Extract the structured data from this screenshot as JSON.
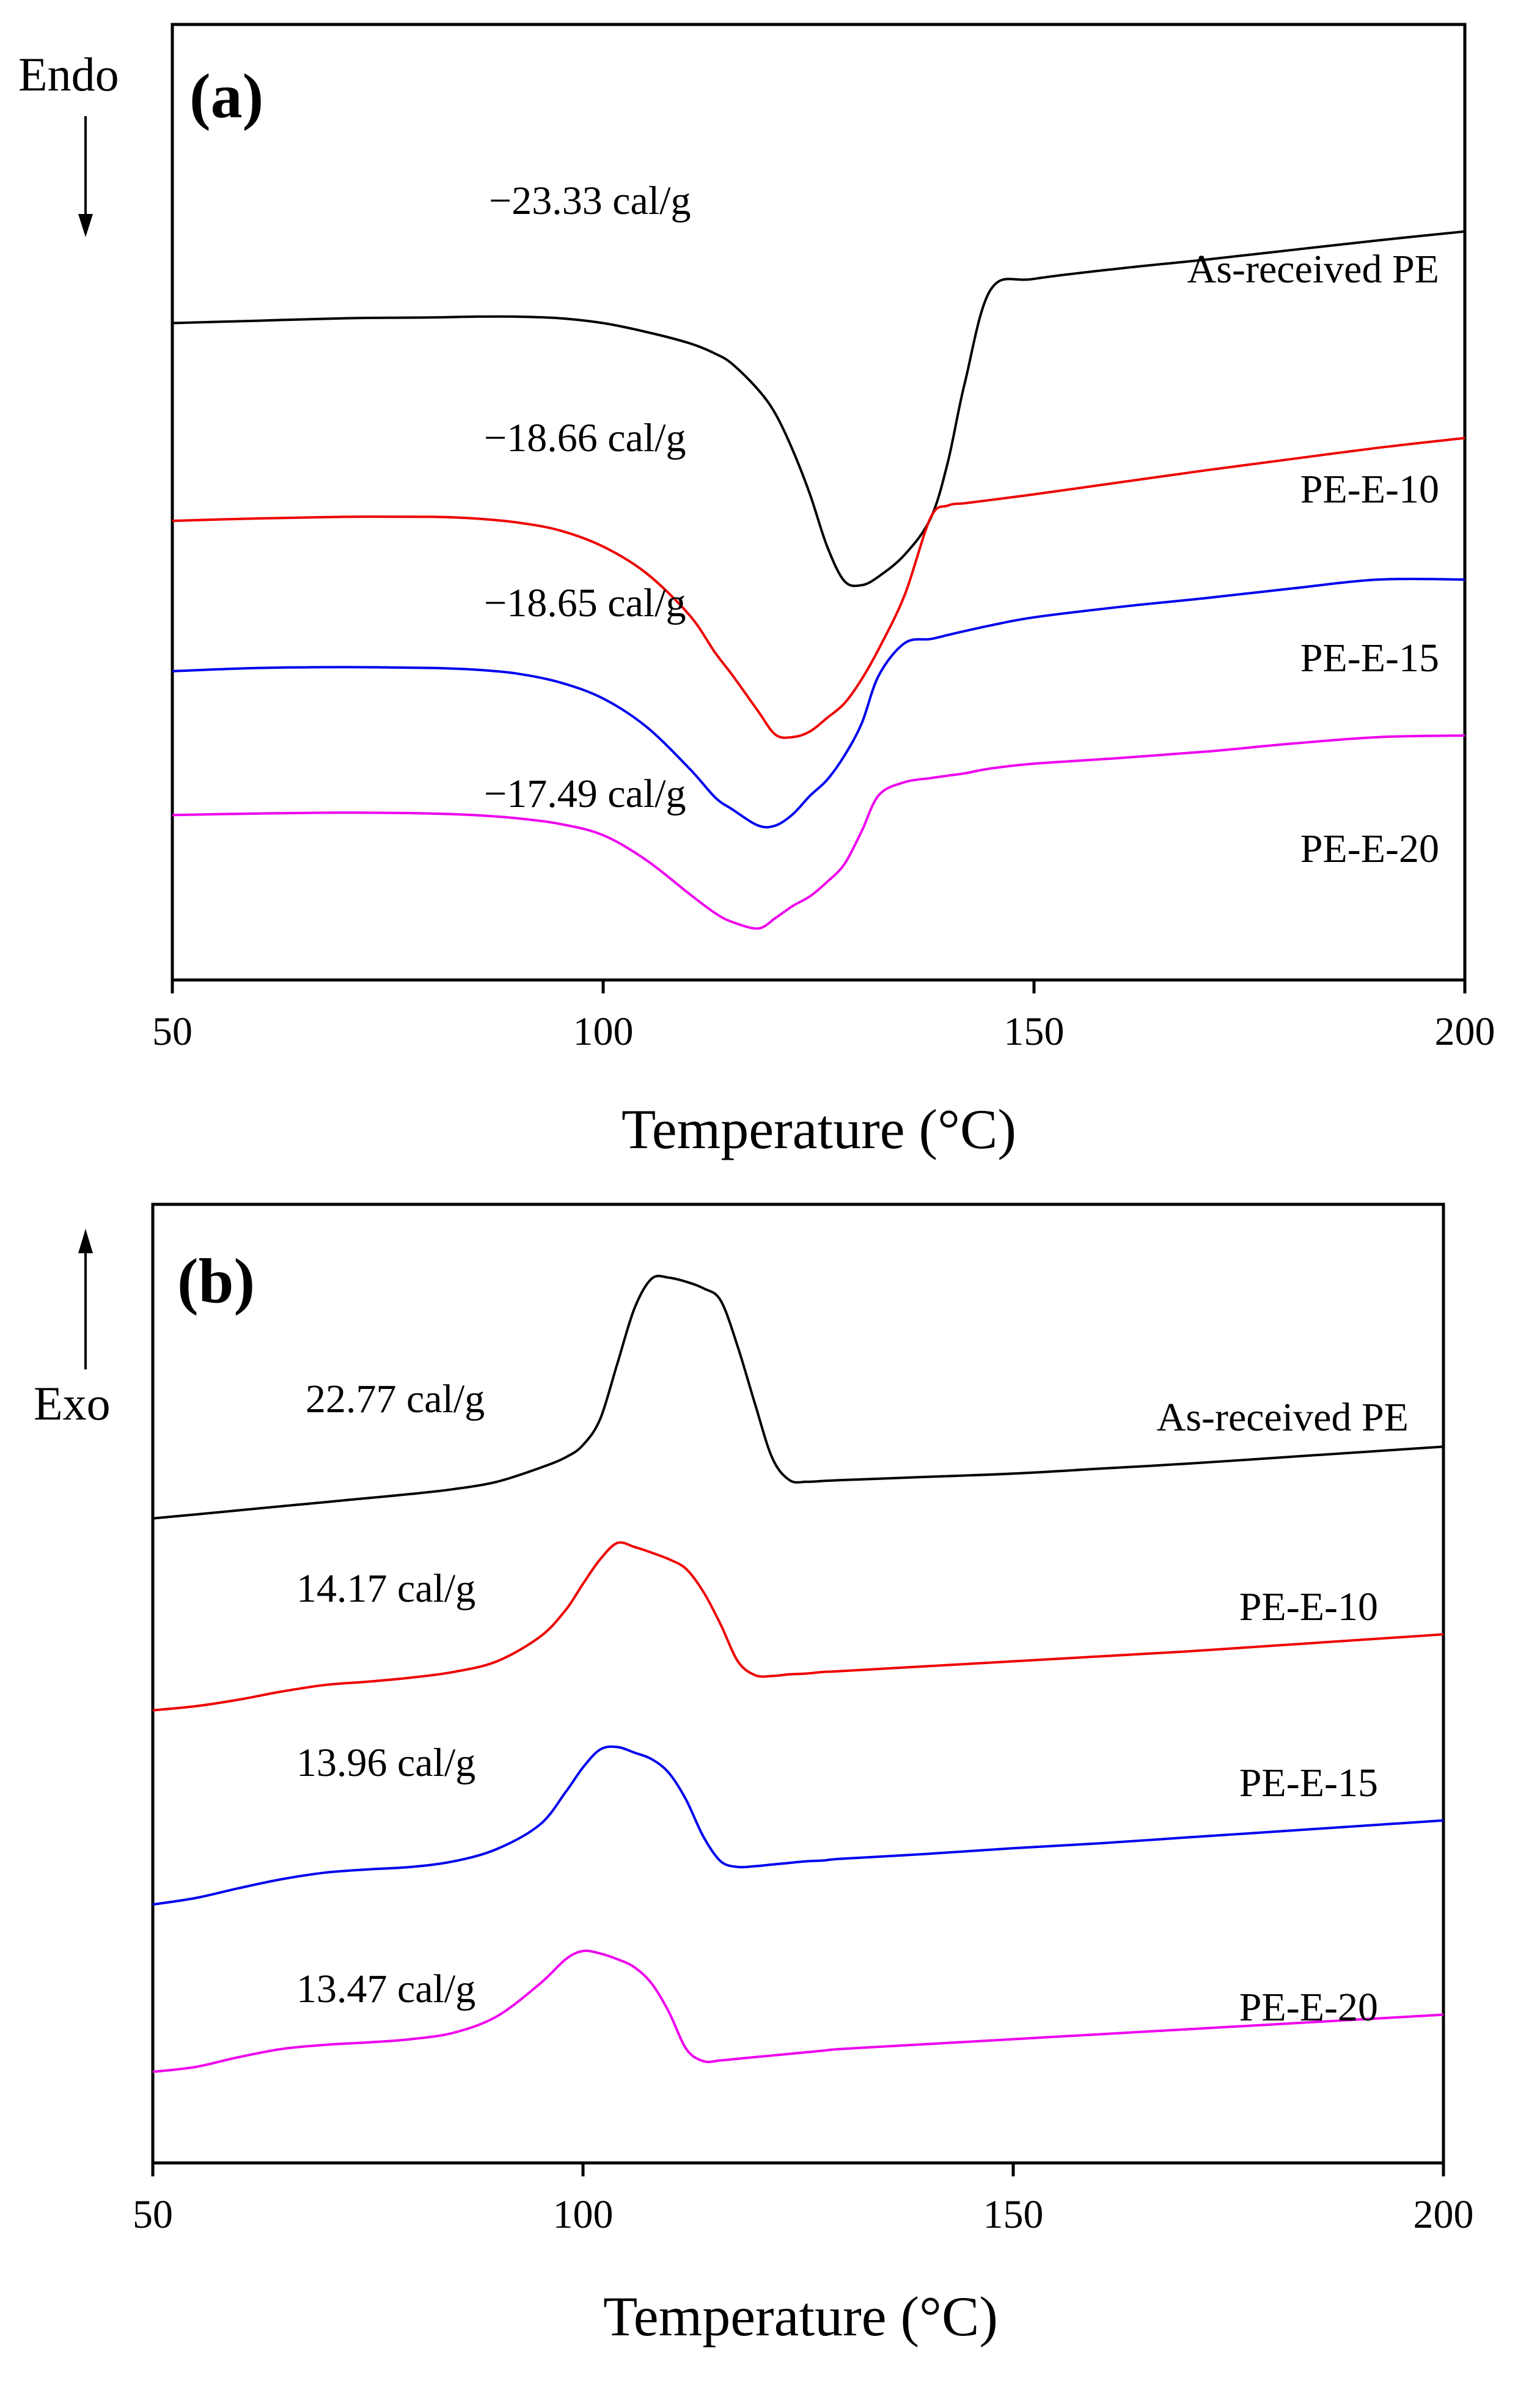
{
  "chart_data": [
    {
      "type": "line",
      "panel_label": "(a)",
      "direction_label": "Endo",
      "direction_arrow": "down",
      "xlabel": "Temperature (°C)",
      "ylabel": "",
      "xlim": [
        50,
        200
      ],
      "ylim": [
        0,
        1
      ],
      "xticks": [
        50,
        100,
        150,
        200
      ],
      "x": [
        50,
        60,
        70,
        80,
        85,
        90,
        95,
        100,
        105,
        110,
        113,
        115,
        118,
        120,
        122,
        124,
        126,
        128,
        130,
        132,
        135,
        138,
        140,
        142,
        145,
        150,
        160,
        170,
        180,
        190,
        200
      ],
      "series": [
        {
          "name": "As-received PE",
          "color": "#000000",
          "enthalpy": "−23.33 cal/g",
          "values": [
            0.773,
            0.776,
            0.779,
            0.78,
            0.781,
            0.781,
            0.779,
            0.773,
            0.762,
            0.748,
            0.735,
            0.722,
            0.69,
            0.66,
            0.615,
            0.56,
            0.495,
            0.452,
            0.447,
            0.458,
            0.485,
            0.53,
            0.6,
            0.7,
            0.815,
            0.828,
            0.841,
            0.852,
            0.864,
            0.876,
            0.887
          ]
        },
        {
          "name": "PE-E-10",
          "color": "#ee0000",
          "enthalpy": "−18.66 cal/g",
          "values": [
            0.527,
            0.53,
            0.532,
            0.532,
            0.53,
            0.525,
            0.515,
            0.495,
            0.462,
            0.41,
            0.363,
            0.335,
            0.29,
            0.261,
            0.258,
            0.265,
            0.282,
            0.3,
            0.33,
            0.368,
            0.435,
            0.531,
            0.546,
            0.549,
            0.553,
            0.56,
            0.575,
            0.59,
            0.604,
            0.618,
            0.63
          ]
        },
        {
          "name": "PE-E-15",
          "color": "#0000ee",
          "enthalpy": "−18.65 cal/g",
          "values": [
            0.34,
            0.344,
            0.345,
            0.344,
            0.342,
            0.337,
            0.326,
            0.306,
            0.271,
            0.219,
            0.183,
            0.168,
            0.148,
            0.148,
            0.162,
            0.185,
            0.205,
            0.235,
            0.275,
            0.335,
            0.375,
            0.38,
            0.385,
            0.39,
            0.397,
            0.407,
            0.42,
            0.431,
            0.443,
            0.454,
            0.454
          ]
        },
        {
          "name": "PE-E-20",
          "color": "#ee00ee",
          "enthalpy": "−17.49 cal/g",
          "values": [
            0.161,
            0.163,
            0.164,
            0.163,
            0.161,
            0.157,
            0.15,
            0.136,
            0.105,
            0.063,
            0.039,
            0.028,
            0.02,
            0.033,
            0.048,
            0.06,
            0.078,
            0.1,
            0.141,
            0.186,
            0.202,
            0.207,
            0.21,
            0.213,
            0.219,
            0.225,
            0.232,
            0.24,
            0.25,
            0.258,
            0.26
          ]
        }
      ]
    },
    {
      "type": "line",
      "panel_label": "(b)",
      "direction_label": "Exo",
      "direction_arrow": "up",
      "xlabel": "Temperature (°C)",
      "ylabel": "",
      "xlim": [
        50,
        200
      ],
      "ylim": [
        0,
        1
      ],
      "xticks": [
        50,
        100,
        150,
        200
      ],
      "x": [
        50,
        55,
        60,
        65,
        70,
        75,
        80,
        85,
        90,
        95,
        98,
        100,
        102,
        104,
        106,
        108,
        110,
        112,
        114,
        116,
        118,
        120,
        122,
        124,
        126,
        128,
        130,
        140,
        150,
        160,
        170,
        180,
        190,
        200
      ],
      "series": [
        {
          "name": "As-received PE",
          "color": "#000000",
          "enthalpy": "22.77 cal/g",
          "values": [
            0.69,
            0.695,
            0.7,
            0.705,
            0.71,
            0.715,
            0.72,
            0.726,
            0.735,
            0.752,
            0.765,
            0.78,
            0.812,
            0.88,
            0.948,
            0.984,
            0.985,
            0.98,
            0.972,
            0.957,
            0.9,
            0.83,
            0.764,
            0.737,
            0.735,
            0.736,
            0.737,
            0.741,
            0.745,
            0.751,
            0.757,
            0.764,
            0.771,
            0.778
          ]
        },
        {
          "name": "PE-E-10",
          "color": "#ee0000",
          "enthalpy": "14.17 cal/g",
          "values": [
            0.455,
            0.46,
            0.468,
            0.478,
            0.486,
            0.49,
            0.495,
            0.502,
            0.515,
            0.545,
            0.578,
            0.61,
            0.64,
            0.66,
            0.655,
            0.648,
            0.64,
            0.628,
            0.6,
            0.56,
            0.515,
            0.498,
            0.497,
            0.499,
            0.5,
            0.502,
            0.503,
            0.509,
            0.515,
            0.521,
            0.527,
            0.534,
            0.541,
            0.548
          ]
        },
        {
          "name": "PE-E-15",
          "color": "#0000ee",
          "enthalpy": "13.96 cal/g",
          "values": [
            0.217,
            0.225,
            0.237,
            0.248,
            0.256,
            0.26,
            0.263,
            0.27,
            0.285,
            0.315,
            0.355,
            0.385,
            0.407,
            0.41,
            0.403,
            0.395,
            0.378,
            0.345,
            0.3,
            0.27,
            0.263,
            0.264,
            0.266,
            0.268,
            0.27,
            0.271,
            0.273,
            0.279,
            0.286,
            0.292,
            0.299,
            0.306,
            0.313,
            0.32
          ]
        },
        {
          "name": "PE-E-20",
          "color": "#ee00ee",
          "enthalpy": "13.47 cal/g",
          "values": [
            0.012,
            0.018,
            0.03,
            0.04,
            0.045,
            0.048,
            0.052,
            0.06,
            0.08,
            0.12,
            0.15,
            0.16,
            0.157,
            0.15,
            0.14,
            0.12,
            0.085,
            0.04,
            0.025,
            0.026,
            0.028,
            0.03,
            0.032,
            0.034,
            0.036,
            0.038,
            0.04,
            0.046,
            0.052,
            0.058,
            0.064,
            0.07,
            0.076,
            0.082
          ]
        }
      ]
    }
  ]
}
